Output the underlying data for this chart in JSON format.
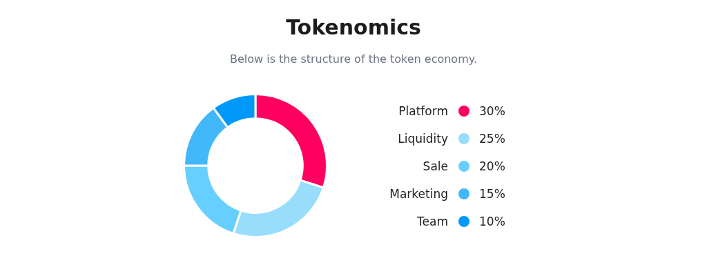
{
  "chart_data": {
    "type": "donut",
    "title": "Tokenomics",
    "subtitle": "Below is the structure of the token economy.",
    "categories": [
      "Platform",
      "Liquidity",
      "Sale",
      "Marketing",
      "Team"
    ],
    "values": [
      30,
      25,
      20,
      15,
      10
    ],
    "colors": [
      "#ff0060",
      "#99ddfd",
      "#66cfff",
      "#42b7fa",
      "#0099fa"
    ],
    "value_labels": [
      "30%",
      "25%",
      "20%",
      "15%",
      "10%"
    ],
    "legend": "right"
  }
}
